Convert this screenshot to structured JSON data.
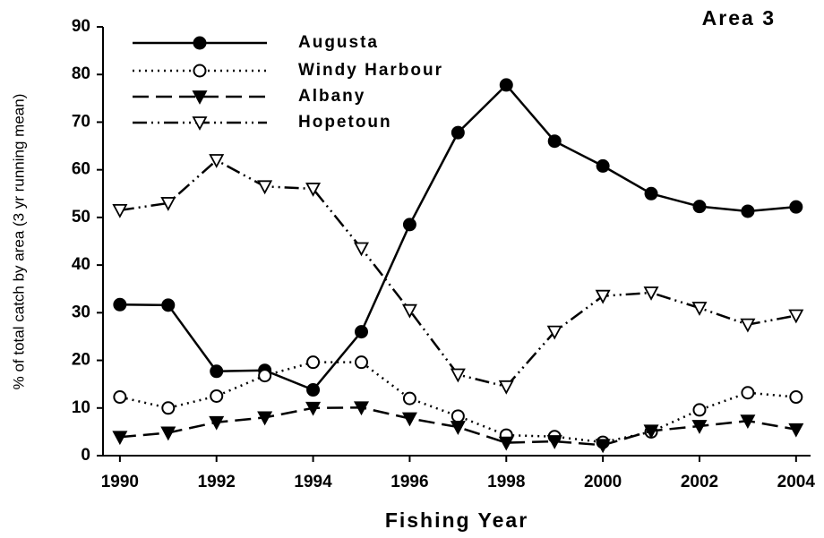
{
  "chart_data": {
    "type": "line",
    "annotation": "Area 3",
    "xlabel": "Fishing Year",
    "ylabel": "% of total catch by area (3 yr running mean)",
    "x": [
      1990,
      1991,
      1992,
      1993,
      1994,
      1995,
      1996,
      1997,
      1998,
      1999,
      2000,
      2001,
      2002,
      2003,
      2004
    ],
    "xlim": [
      1989.65,
      2004.3
    ],
    "xticks": [
      1990,
      1992,
      1994,
      1996,
      1998,
      2000,
      2002,
      2004
    ],
    "ylim": [
      0,
      90
    ],
    "yticks": [
      0,
      10,
      20,
      30,
      40,
      50,
      60,
      70,
      80,
      90
    ],
    "legend": "upper-left",
    "series": [
      {
        "name": "Augusta",
        "color": "#000000",
        "line_style": "solid",
        "marker": "circle-filled",
        "values": [
          31.7,
          31.6,
          17.7,
          17.9,
          13.8,
          26,
          48.5,
          67.8,
          77.8,
          66,
          60.8,
          55,
          52.3,
          51.3,
          52.2
        ]
      },
      {
        "name": "Windy Harbour",
        "color": "#000000",
        "line_style": "dotted",
        "marker": "circle-open",
        "values": [
          12.3,
          10,
          12.5,
          16.8,
          19.6,
          19.6,
          12,
          8.3,
          4.3,
          4,
          2.8,
          5,
          9.6,
          13.2,
          12.3
        ]
      },
      {
        "name": "Albany",
        "color": "#000000",
        "line_style": "dashed",
        "marker": "triangle-down-filled",
        "values": [
          3.9,
          4.8,
          7,
          8,
          10,
          10.1,
          7.8,
          6,
          2.7,
          3,
          2.2,
          5.2,
          6.2,
          7.3,
          5.5
        ]
      },
      {
        "name": "Hopetoun",
        "color": "#000000",
        "line_style": "dash-dot-dot",
        "marker": "triangle-down-open",
        "values": [
          51.5,
          53,
          62,
          56.5,
          56,
          43.5,
          30.5,
          17,
          14.5,
          26,
          33.5,
          34.2,
          31,
          27.5,
          29.4
        ]
      }
    ]
  }
}
